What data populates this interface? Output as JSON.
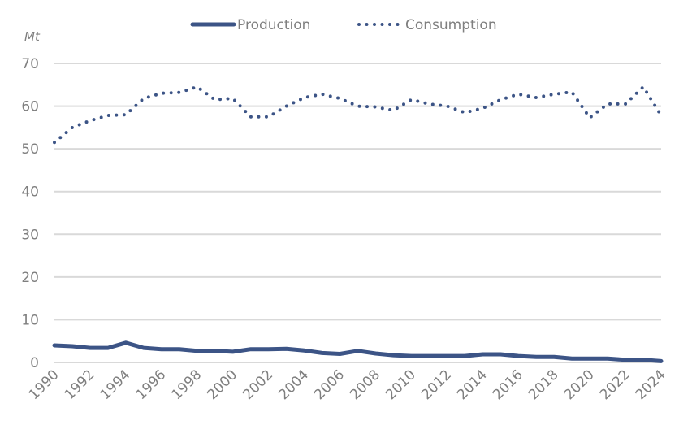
{
  "chart_data": {
    "type": "line",
    "title": "",
    "xlabel": "",
    "ylabel": "Mt",
    "ylim": [
      0,
      70
    ],
    "yticks": [
      0,
      10,
      20,
      30,
      40,
      50,
      60,
      70
    ],
    "xticks": [
      "1990",
      "1992",
      "1994",
      "1996",
      "1998",
      "2000",
      "2002",
      "2004",
      "2006",
      "2008",
      "2010",
      "2012",
      "2014",
      "2016",
      "2018",
      "2020",
      "2022",
      "2024"
    ],
    "grid": true,
    "legend_position": "top-center",
    "x": [
      1990,
      1991,
      1992,
      1993,
      1994,
      1995,
      1996,
      1997,
      1998,
      1999,
      2000,
      2001,
      2002,
      2003,
      2004,
      2005,
      2006,
      2007,
      2008,
      2009,
      2010,
      2011,
      2012,
      2013,
      2014,
      2015,
      2016,
      2017,
      2018,
      2019,
      2020,
      2021,
      2022,
      2023,
      2024
    ],
    "series": [
      {
        "name": "Production",
        "style": "solid",
        "color": "#3c5486",
        "values": [
          4.0,
          3.8,
          3.4,
          3.4,
          4.6,
          3.4,
          3.1,
          3.1,
          2.7,
          2.7,
          2.5,
          3.1,
          3.1,
          3.2,
          2.8,
          2.2,
          2.0,
          2.7,
          2.1,
          1.7,
          1.5,
          1.5,
          1.5,
          1.5,
          1.9,
          1.9,
          1.5,
          1.3,
          1.3,
          0.9,
          0.9,
          0.9,
          0.6,
          0.6,
          0.3
        ]
      },
      {
        "name": "Consumption",
        "style": "dotted",
        "color": "#3c5486",
        "values": [
          51.5,
          55.0,
          56.6,
          57.8,
          58.0,
          61.8,
          63.0,
          63.2,
          64.5,
          61.5,
          61.8,
          57.5,
          57.5,
          60.0,
          62.0,
          62.8,
          61.8,
          60.0,
          59.8,
          59.0,
          61.5,
          60.5,
          60.0,
          58.5,
          59.5,
          61.5,
          62.8,
          62.0,
          62.8,
          63.3,
          57.3,
          60.5,
          60.5,
          64.5,
          57.8
        ]
      }
    ]
  }
}
